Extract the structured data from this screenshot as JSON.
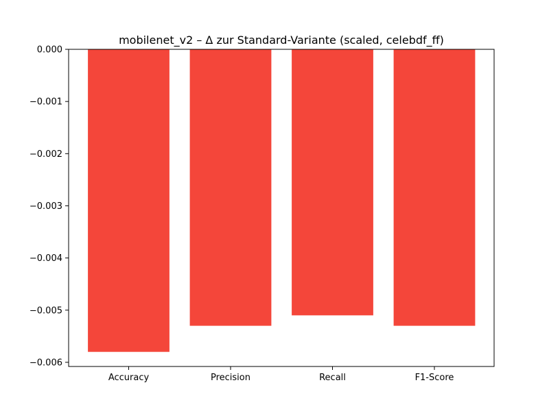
{
  "chart_data": {
    "type": "bar",
    "title": "mobilenet_v2 – Δ zur Standard-Variante (scaled, celebdf_ff)",
    "xlabel": "",
    "ylabel": "",
    "categories": [
      "Accuracy",
      "Precision",
      "Recall",
      "F1-Score"
    ],
    "values": [
      -0.0058,
      -0.0053,
      -0.0051,
      -0.0053
    ],
    "ylim": [
      -0.00608,
      0.0
    ],
    "yticks": [
      0.0,
      -0.001,
      -0.002,
      -0.003,
      -0.004,
      -0.005,
      -0.006
    ],
    "ytick_labels": [
      "0.000",
      "−0.001",
      "−0.002",
      "−0.003",
      "−0.004",
      "−0.005",
      "−0.006"
    ],
    "bar_color": "#f4463a",
    "grid": false,
    "legend": "none"
  }
}
